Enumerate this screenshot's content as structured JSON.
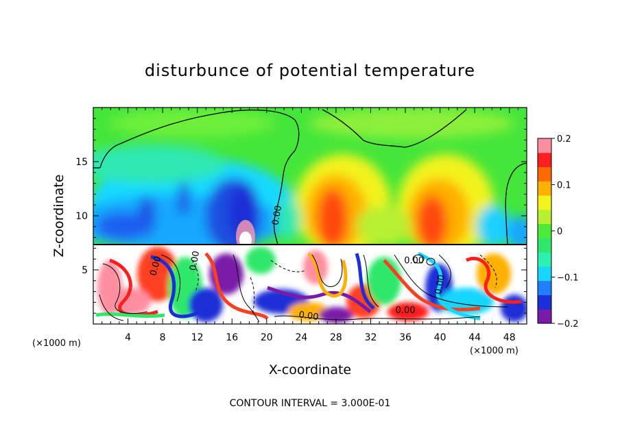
{
  "chart_data": {
    "type": "heatmap",
    "title": "disturbunce of potential temperature",
    "xlabel": "X-coordinate",
    "ylabel": "Z-coordinate",
    "x_unit": "(×1000 m)",
    "x_unit_right": "(×1000 m)",
    "xlim": [
      0,
      50
    ],
    "ylim": [
      0,
      20
    ],
    "x_ticks": [
      4,
      8,
      12,
      16,
      20,
      24,
      28,
      32,
      36,
      40,
      44,
      48
    ],
    "y_ticks": [
      5,
      10,
      15
    ],
    "colorbar": {
      "range": [
        -0.2,
        0.2
      ],
      "ticks": [
        -0.2,
        -0.1,
        0,
        0.1,
        0.2
      ],
      "tick_labels": [
        "−0.2",
        "−0.1",
        "0",
        "0.1",
        "0.2"
      ],
      "colors": [
        "#7a1aa8",
        "#1b2fd6",
        "#1f7fff",
        "#18d6ff",
        "#2ef0b0",
        "#2fe86a",
        "#4ce83a",
        "#b8f030",
        "#f3f31d",
        "#ffb000",
        "#ff6a00",
        "#ff1f1f",
        "#ff8f9f"
      ]
    },
    "contour_labels": [
      "0.00",
      "0.00",
      "0.00",
      "0.00",
      "0.00",
      "0.00",
      "0.00"
    ],
    "note": "CONTOUR INTERVAL = 3.000E-01",
    "grid": false
  }
}
